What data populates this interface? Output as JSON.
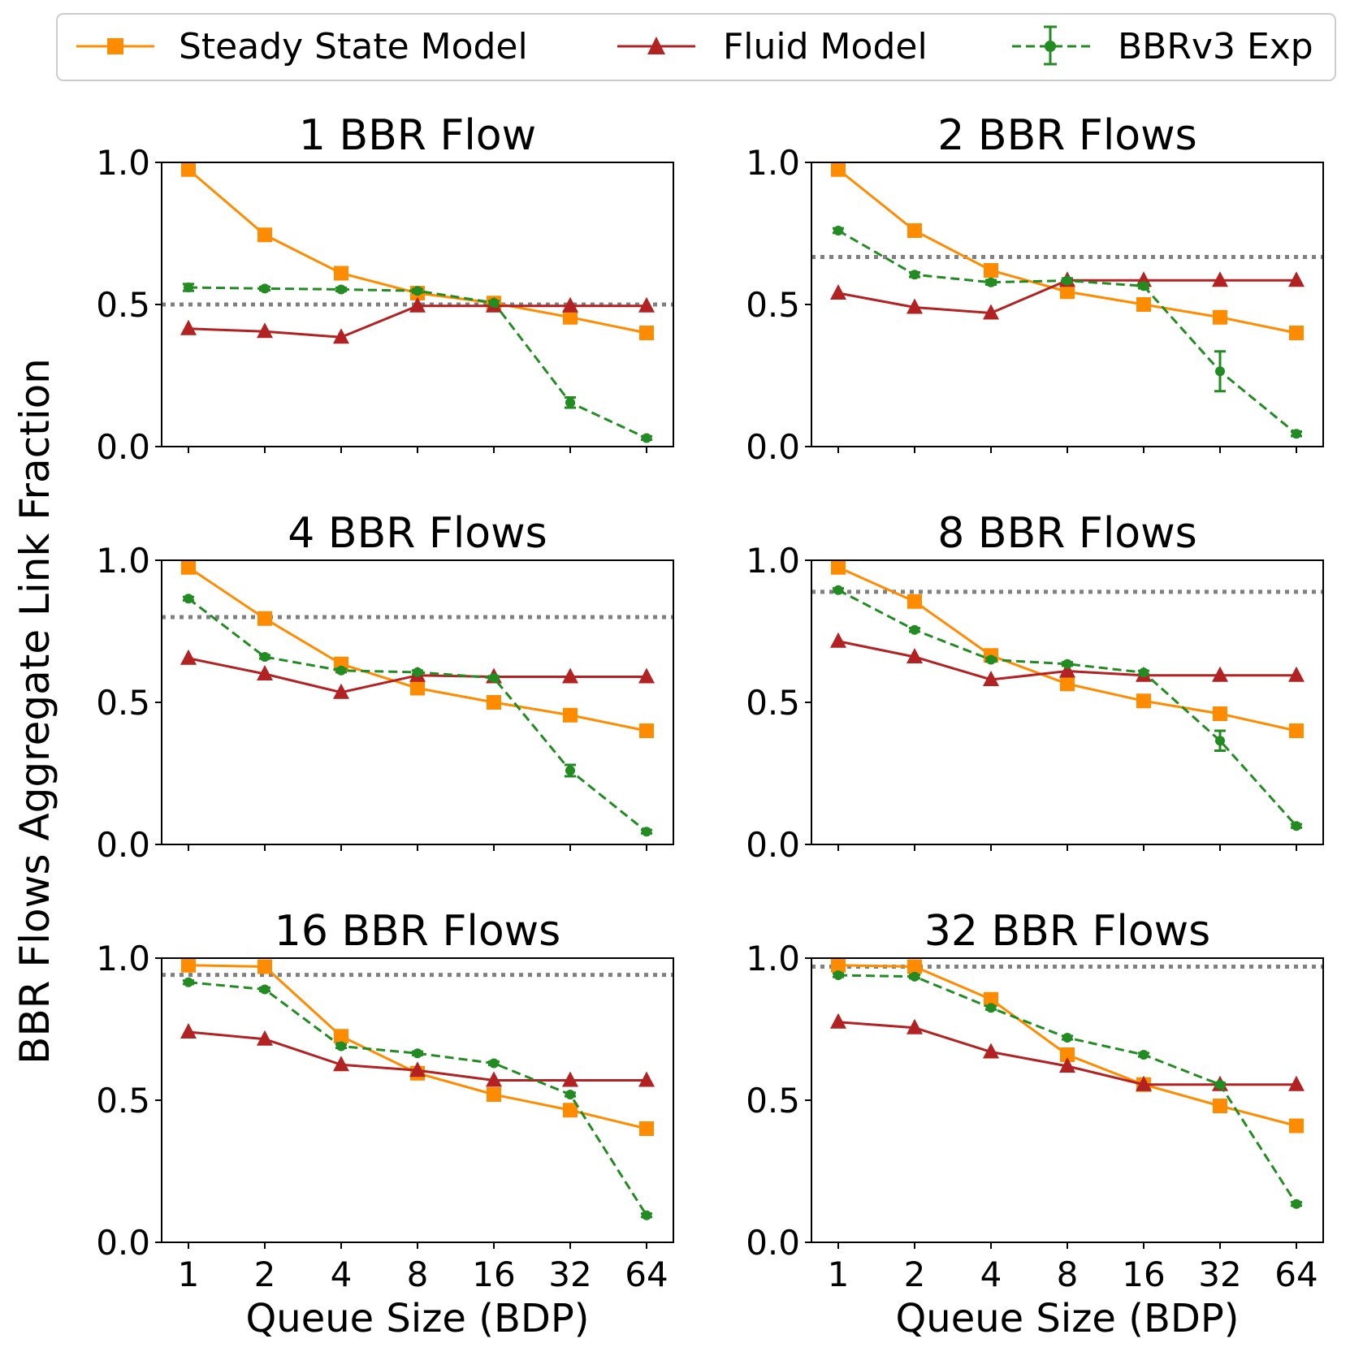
{
  "legend": {
    "entries": [
      {
        "name": "Steady State Model",
        "color": "#ff8c00",
        "marker": "square",
        "style": "solid"
      },
      {
        "name": "Fluid Model",
        "color": "#b22222",
        "marker": "triangle",
        "style": "solid"
      },
      {
        "name": "BBRv3 Exp",
        "color": "#228b22",
        "marker": "circle",
        "style": "dashed"
      }
    ]
  },
  "shared_ylabel": "BBR Flows Aggregate Link Fraction",
  "shared_xlabel": "Queue Size (BDP)",
  "chart_data": [
    {
      "type": "line",
      "title": "1 BBR Flow",
      "categories": [
        "1",
        "2",
        "4",
        "8",
        "16",
        "32",
        "64"
      ],
      "ylim": [
        0,
        1
      ],
      "yticks": [
        "0.0",
        "0.5",
        "1.0"
      ],
      "xlabel": "",
      "reference_line": 0.5,
      "series": [
        {
          "name": "Steady State Model",
          "values": [
            0.975,
            0.745,
            0.61,
            0.54,
            0.505,
            0.455,
            0.4
          ]
        },
        {
          "name": "Fluid Model",
          "values": [
            0.415,
            0.405,
            0.385,
            0.495,
            0.495,
            0.495,
            0.495
          ]
        },
        {
          "name": "BBRv3 Exp",
          "values": [
            0.56,
            0.556,
            0.553,
            0.548,
            0.506,
            0.155,
            0.03
          ],
          "errors": [
            0.012,
            0.006,
            0.006,
            0.006,
            0.006,
            0.018,
            0.006
          ]
        }
      ]
    },
    {
      "type": "line",
      "title": "2 BBR Flows",
      "categories": [
        "1",
        "2",
        "4",
        "8",
        "16",
        "32",
        "64"
      ],
      "ylim": [
        0,
        1
      ],
      "yticks": [
        "0.0",
        "0.5",
        "1.0"
      ],
      "xlabel": "",
      "reference_line": 0.667,
      "series": [
        {
          "name": "Steady State Model",
          "values": [
            0.975,
            0.76,
            0.62,
            0.545,
            0.5,
            0.455,
            0.4
          ]
        },
        {
          "name": "Fluid Model",
          "values": [
            0.54,
            0.49,
            0.47,
            0.585,
            0.585,
            0.585,
            0.585
          ]
        },
        {
          "name": "BBRv3 Exp",
          "values": [
            0.76,
            0.605,
            0.578,
            0.584,
            0.565,
            0.265,
            0.045
          ],
          "errors": [
            0.008,
            0.008,
            0.008,
            0.008,
            0.008,
            0.07,
            0.008
          ]
        }
      ]
    },
    {
      "type": "line",
      "title": "4 BBR Flows",
      "categories": [
        "1",
        "2",
        "4",
        "8",
        "16",
        "32",
        "64"
      ],
      "ylim": [
        0,
        1
      ],
      "yticks": [
        "0.0",
        "0.5",
        "1.0"
      ],
      "xlabel": "",
      "reference_line": 0.8,
      "series": [
        {
          "name": "Steady State Model",
          "values": [
            0.975,
            0.795,
            0.635,
            0.55,
            0.5,
            0.455,
            0.4
          ]
        },
        {
          "name": "Fluid Model",
          "values": [
            0.655,
            0.6,
            0.535,
            0.595,
            0.59,
            0.59,
            0.59
          ]
        },
        {
          "name": "BBRv3 Exp",
          "values": [
            0.865,
            0.66,
            0.612,
            0.606,
            0.586,
            0.26,
            0.045
          ],
          "errors": [
            0.006,
            0.006,
            0.006,
            0.006,
            0.006,
            0.02,
            0.006
          ]
        }
      ]
    },
    {
      "type": "line",
      "title": "8 BBR Flows",
      "categories": [
        "1",
        "2",
        "4",
        "8",
        "16",
        "32",
        "64"
      ],
      "ylim": [
        0,
        1
      ],
      "yticks": [
        "0.0",
        "0.5",
        "1.0"
      ],
      "xlabel": "",
      "reference_line": 0.889,
      "series": [
        {
          "name": "Steady State Model",
          "values": [
            0.975,
            0.855,
            0.665,
            0.565,
            0.505,
            0.46,
            0.4
          ]
        },
        {
          "name": "Fluid Model",
          "values": [
            0.715,
            0.66,
            0.58,
            0.61,
            0.595,
            0.595,
            0.595
          ]
        },
        {
          "name": "BBRv3 Exp",
          "values": [
            0.895,
            0.755,
            0.65,
            0.635,
            0.605,
            0.365,
            0.065
          ],
          "errors": [
            0.006,
            0.006,
            0.006,
            0.006,
            0.006,
            0.035,
            0.006
          ]
        }
      ]
    },
    {
      "type": "line",
      "title": "16 BBR Flows",
      "categories": [
        "1",
        "2",
        "4",
        "8",
        "16",
        "32",
        "64"
      ],
      "ylim": [
        0,
        1
      ],
      "yticks": [
        "0.0",
        "0.5",
        "1.0"
      ],
      "xlabel": "Queue Size (BDP)",
      "reference_line": 0.941,
      "series": [
        {
          "name": "Steady State Model",
          "values": [
            0.975,
            0.97,
            0.725,
            0.595,
            0.52,
            0.465,
            0.4
          ]
        },
        {
          "name": "Fluid Model",
          "values": [
            0.74,
            0.715,
            0.625,
            0.605,
            0.57,
            0.57,
            0.57
          ]
        },
        {
          "name": "BBRv3 Exp",
          "values": [
            0.915,
            0.89,
            0.69,
            0.665,
            0.63,
            0.52,
            0.095
          ],
          "errors": [
            0.006,
            0.006,
            0.006,
            0.006,
            0.006,
            0.006,
            0.006
          ]
        }
      ]
    },
    {
      "type": "line",
      "title": "32 BBR Flows",
      "categories": [
        "1",
        "2",
        "4",
        "8",
        "16",
        "32",
        "64"
      ],
      "ylim": [
        0,
        1
      ],
      "yticks": [
        "0.0",
        "0.5",
        "1.0"
      ],
      "xlabel": "Queue Size (BDP)",
      "reference_line": 0.97,
      "series": [
        {
          "name": "Steady State Model",
          "values": [
            0.975,
            0.97,
            0.855,
            0.66,
            0.555,
            0.48,
            0.41
          ]
        },
        {
          "name": "Fluid Model",
          "values": [
            0.775,
            0.755,
            0.67,
            0.62,
            0.555,
            0.555,
            0.555
          ]
        },
        {
          "name": "BBRv3 Exp",
          "values": [
            0.94,
            0.935,
            0.825,
            0.72,
            0.66,
            0.555,
            0.135
          ],
          "errors": [
            0.006,
            0.006,
            0.006,
            0.006,
            0.006,
            0.006,
            0.006
          ]
        }
      ]
    }
  ]
}
